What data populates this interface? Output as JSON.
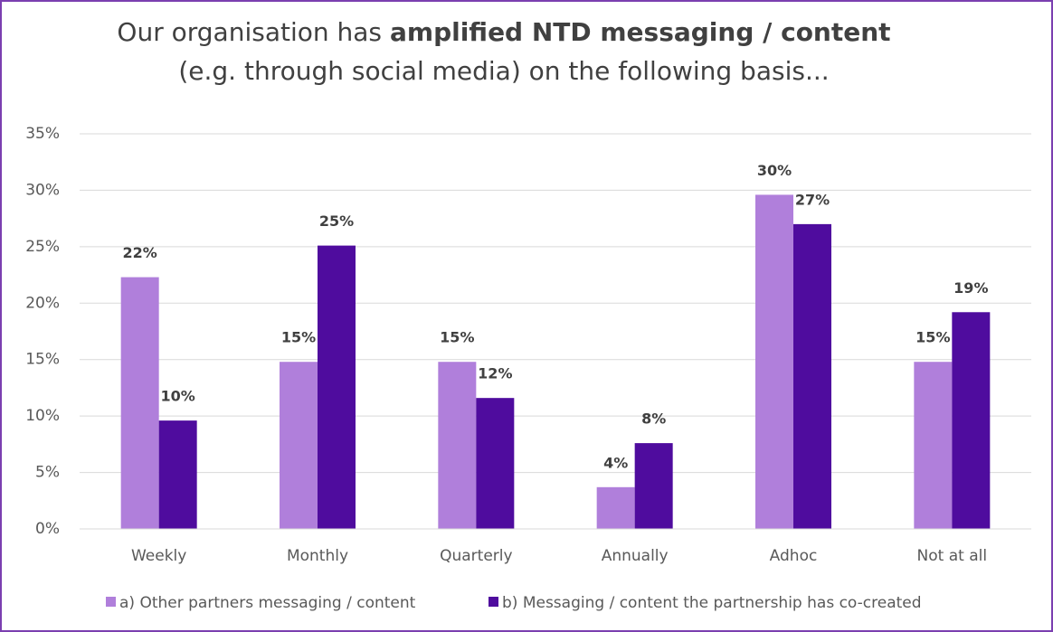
{
  "chart_data": {
    "type": "bar",
    "title": [
      "Our organisation has",
      "amplified NTD messaging / content",
      "(e.g. through social media) on the following basis..."
    ],
    "categories": [
      "Weekly",
      "Monthly",
      "Quarterly",
      "Annually",
      "Adhoc",
      "Not at all"
    ],
    "series": [
      {
        "name": "a) Other partners messaging / content",
        "color": "#b07fdb",
        "values": [
          22.3,
          14.8,
          14.8,
          3.7,
          29.6,
          14.8
        ],
        "value_labels": [
          "22%",
          "15%",
          "15%",
          "4%",
          "30%",
          "15%"
        ]
      },
      {
        "name": "b) Messaging / content the partnership has co-created",
        "color": "#4f0c9e",
        "values": [
          9.6,
          25.1,
          11.6,
          7.6,
          27.0,
          19.2
        ],
        "value_labels": [
          "10%",
          "25%",
          "12%",
          "8%",
          "27%",
          "19%"
        ]
      }
    ],
    "ylim": [
      0,
      35
    ],
    "yticks": [
      {
        "value": 0,
        "label": "0%"
      },
      {
        "value": 5,
        "label": "5%"
      },
      {
        "value": 10,
        "label": "10%"
      },
      {
        "value": 15,
        "label": "15%"
      },
      {
        "value": 20,
        "label": "20%"
      },
      {
        "value": 25,
        "label": "25%"
      },
      {
        "value": 30,
        "label": "30%"
      },
      {
        "value": 35,
        "label": "35%"
      }
    ],
    "grid": true,
    "legend": "bottom"
  }
}
